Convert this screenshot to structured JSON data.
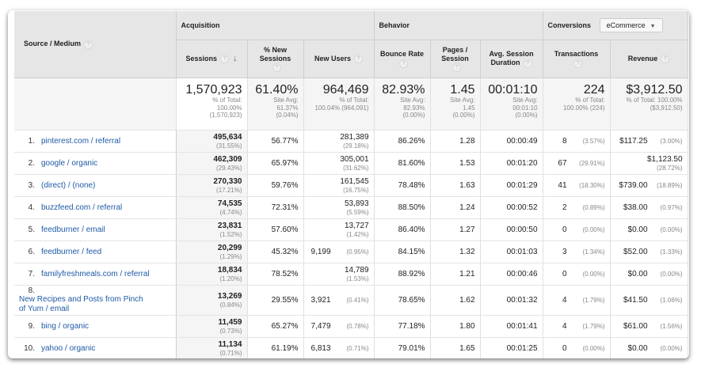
{
  "header": {
    "source_medium": "Source / Medium",
    "groups": {
      "acquisition": "Acquisition",
      "behavior": "Behavior",
      "conversions": "Conversions"
    },
    "conversions_select": "eCommerce",
    "columns": [
      "Sessions",
      "% New Sessions",
      "New Users",
      "Bounce Rate",
      "Pages / Session",
      "Avg. Session Duration",
      "Transactions",
      "Revenue"
    ],
    "sort": "descending"
  },
  "totals": [
    {
      "value": "1,570,923",
      "l1": "% of Total:",
      "l2": "100.00%",
      "l3": "(1,570,923)"
    },
    {
      "value": "61.40%",
      "l1": "Site Avg:",
      "l2": "61.37%",
      "l3": "(0.04%)"
    },
    {
      "value": "964,469",
      "l1": "% of Total:",
      "l2": "100.04% (964,091)",
      "l3": ""
    },
    {
      "value": "82.93%",
      "l1": "Site Avg:",
      "l2": "82.93%",
      "l3": "(0.00%)"
    },
    {
      "value": "1.45",
      "l1": "Site Avg:",
      "l2": "1.45",
      "l3": "(0.00%)"
    },
    {
      "value": "00:01:10",
      "l1": "Site Avg:",
      "l2": "00:01:10",
      "l3": "(0.00%)"
    },
    {
      "value": "224",
      "l1": "% of Total:",
      "l2": "100.00% (224)",
      "l3": ""
    },
    {
      "value": "$3,912.50",
      "l1": "% of Total: 100.00%",
      "l2": "($3,912.50)",
      "l3": ""
    }
  ],
  "rows": [
    {
      "n": "1.",
      "source": "pinterest.com / referral",
      "sessions": "495,634",
      "sessions_pct": "(31.55%)",
      "new_sessions": "56.77%",
      "new_users": "281,389",
      "new_users_pct": "(29.18%)",
      "bounce": "86.26%",
      "pages": "1.28",
      "duration": "00:00:49",
      "transactions": "8",
      "transactions_pct": "(3.57%)",
      "revenue": "$117.25",
      "revenue_pct": "(3.00%)"
    },
    {
      "n": "2.",
      "source": "google / organic",
      "sessions": "462,309",
      "sessions_pct": "(29.43%)",
      "new_sessions": "65.97%",
      "new_users": "305,001",
      "new_users_pct": "(31.62%)",
      "bounce": "81.60%",
      "pages": "1.53",
      "duration": "00:01:20",
      "transactions": "67",
      "transactions_pct": "(29.91%)",
      "revenue": "$1,123.50",
      "revenue_pct": "(28.72%)"
    },
    {
      "n": "3.",
      "source": "(direct) / (none)",
      "sessions": "270,330",
      "sessions_pct": "(17.21%)",
      "new_sessions": "59.76%",
      "new_users": "161,545",
      "new_users_pct": "(16.75%)",
      "bounce": "78.48%",
      "pages": "1.63",
      "duration": "00:01:29",
      "transactions": "41",
      "transactions_pct": "(18.30%)",
      "revenue": "$739.00",
      "revenue_pct": "(18.89%)"
    },
    {
      "n": "4.",
      "source": "buzzfeed.com / referral",
      "sessions": "74,535",
      "sessions_pct": "(4.74%)",
      "new_sessions": "72.31%",
      "new_users": "53,893",
      "new_users_pct": "(5.59%)",
      "bounce": "88.50%",
      "pages": "1.24",
      "duration": "00:00:52",
      "transactions": "2",
      "transactions_pct": "(0.89%)",
      "revenue": "$38.00",
      "revenue_pct": "(0.97%)"
    },
    {
      "n": "5.",
      "source": "feedburner / email",
      "sessions": "23,831",
      "sessions_pct": "(1.52%)",
      "new_sessions": "57.60%",
      "new_users": "13,727",
      "new_users_pct": "(1.42%)",
      "bounce": "86.40%",
      "pages": "1.27",
      "duration": "00:00:50",
      "transactions": "0",
      "transactions_pct": "(0.00%)",
      "revenue": "$0.00",
      "revenue_pct": "(0.00%)"
    },
    {
      "n": "6.",
      "source": "feedburner / feed",
      "sessions": "20,299",
      "sessions_pct": "(1.29%)",
      "new_sessions": "45.32%",
      "new_users": "9,199",
      "new_users_pct": "(0.95%)",
      "bounce": "84.15%",
      "pages": "1.32",
      "duration": "00:01:03",
      "transactions": "3",
      "transactions_pct": "(1.34%)",
      "revenue": "$52.00",
      "revenue_pct": "(1.33%)"
    },
    {
      "n": "7.",
      "source": "familyfreshmeals.com / referral",
      "sessions": "18,834",
      "sessions_pct": "(1.20%)",
      "new_sessions": "78.52%",
      "new_users": "14,789",
      "new_users_pct": "(1.53%)",
      "bounce": "88.92%",
      "pages": "1.21",
      "duration": "00:00:46",
      "transactions": "0",
      "transactions_pct": "(0.00%)",
      "revenue": "$0.00",
      "revenue_pct": "(0.00%)"
    },
    {
      "n": "8.",
      "source": "New Recipes and Posts from Pinch of Yum / email",
      "sessions": "13,269",
      "sessions_pct": "(0.84%)",
      "new_sessions": "29.55%",
      "new_users": "3,921",
      "new_users_pct": "(0.41%)",
      "bounce": "78.65%",
      "pages": "1.62",
      "duration": "00:01:32",
      "transactions": "4",
      "transactions_pct": "(1.79%)",
      "revenue": "$41.50",
      "revenue_pct": "(1.06%)"
    },
    {
      "n": "9.",
      "source": "bing / organic",
      "sessions": "11,459",
      "sessions_pct": "(0.73%)",
      "new_sessions": "65.27%",
      "new_users": "7,479",
      "new_users_pct": "(0.78%)",
      "bounce": "77.18%",
      "pages": "1.80",
      "duration": "00:01:41",
      "transactions": "4",
      "transactions_pct": "(1.79%)",
      "revenue": "$61.00",
      "revenue_pct": "(1.56%)"
    },
    {
      "n": "10.",
      "source": "yahoo / organic",
      "sessions": "11,134",
      "sessions_pct": "(0.71%)",
      "new_sessions": "61.19%",
      "new_users": "6,813",
      "new_users_pct": "(0.71%)",
      "bounce": "79.01%",
      "pages": "1.65",
      "duration": "00:01:25",
      "transactions": "0",
      "transactions_pct": "(0.00%)",
      "revenue": "$0.00",
      "revenue_pct": "(0.00%)"
    }
  ]
}
